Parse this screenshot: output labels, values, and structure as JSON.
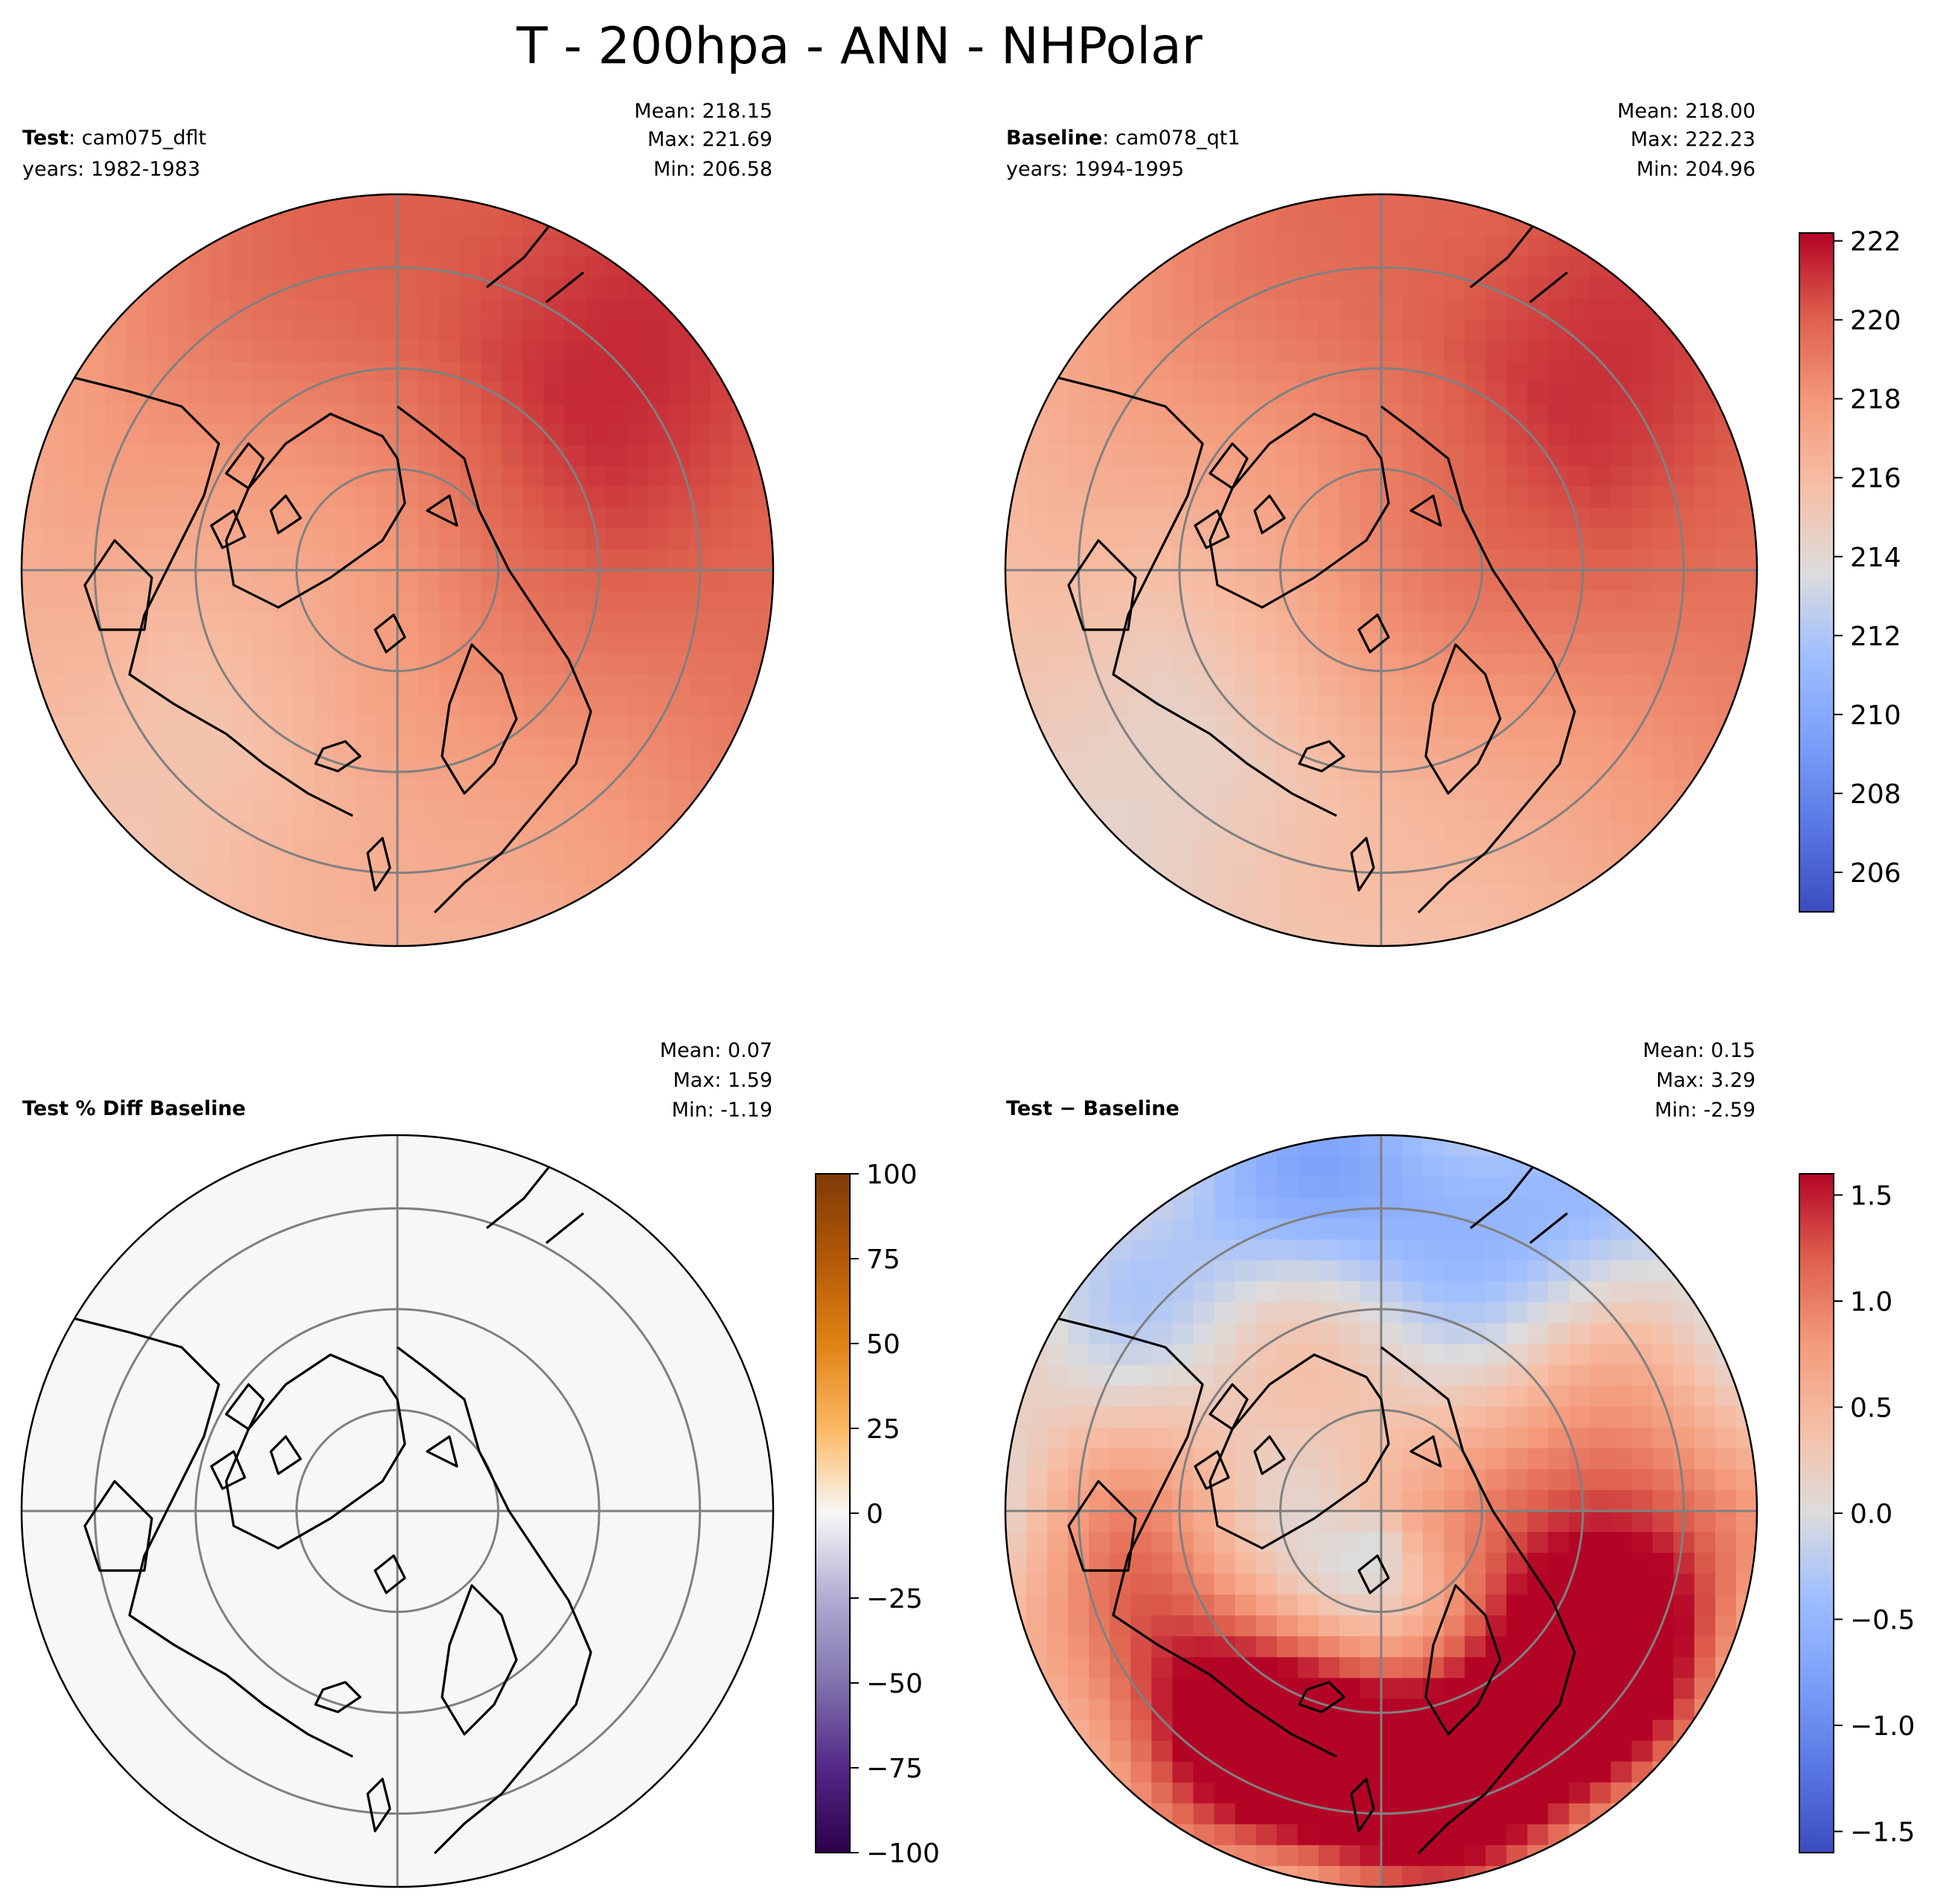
{
  "figure_title": "T - 200hpa - ANN - NHPolar",
  "chart_data": [
    {
      "type": "heatmap",
      "projection": "north-polar-stereographic",
      "panel": "top-left",
      "title_bold": "Test",
      "title_rest": ": cam075_dflt",
      "subtitle": "years: 1982-1983",
      "stats": {
        "mean": "Mean: 218.15",
        "max": "Max: 221.69",
        "min": "Min: 206.58"
      },
      "colormap": "coolwarm",
      "value_range": [
        205,
        222.2
      ],
      "field": {
        "base": 218.4,
        "lobe_amp": 2.6,
        "lobe_lon": 135,
        "pole": 218.0
      }
    },
    {
      "type": "heatmap",
      "projection": "north-polar-stereographic",
      "panel": "top-right",
      "title_bold": "Baseline",
      "title_rest": ": cam078_qt1",
      "subtitle": "years: 1994-1995",
      "stats": {
        "mean": "Mean: 218.00",
        "max": "Max: 222.23",
        "min": "Min: 204.96"
      },
      "colormap": "coolwarm",
      "value_range": [
        205,
        222.2
      ],
      "field": {
        "base": 217.8,
        "lobe_amp": 3.0,
        "lobe_lon": 135,
        "pole": 218.6
      },
      "colorbar": {
        "ticks": [
          "206",
          "208",
          "210",
          "212",
          "214",
          "216",
          "218",
          "220",
          "222"
        ],
        "values": [
          206,
          208,
          210,
          212,
          214,
          216,
          218,
          220,
          222
        ],
        "range": [
          205,
          222.2
        ]
      }
    },
    {
      "type": "heatmap",
      "projection": "north-polar-stereographic",
      "panel": "bottom-left",
      "title_bold": "Test % Diff Baseline",
      "title_rest": "",
      "subtitle": "",
      "stats": {
        "mean": "Mean:  0.07",
        "max": "Max:  1.59",
        "min": "Min: -1.19"
      },
      "colormap": "PuOr_r",
      "value_range": [
        -100,
        100
      ],
      "field": {
        "uniform": 0.07
      },
      "colorbar": {
        "ticks": [
          "−100",
          "−75",
          "−50",
          "−25",
          "0",
          "25",
          "50",
          "75",
          "100"
        ],
        "values": [
          -100,
          -75,
          -50,
          -25,
          0,
          25,
          50,
          75,
          100
        ],
        "range": [
          -100,
          100
        ]
      }
    },
    {
      "type": "heatmap",
      "projection": "north-polar-stereographic",
      "panel": "bottom-right",
      "title_bold": "Test",
      "title_rest": " − Baseline",
      "subtitle": "",
      "stats": {
        "mean": "Mean:  0.15",
        "max": "Max:  3.29",
        "min": "Min: -2.59"
      },
      "colormap": "coolwarm",
      "value_range": [
        -1.6,
        1.6
      ],
      "field": {
        "blobs": [
          {
            "lon": 60,
            "r": 0.65,
            "amp": 1.8,
            "w": 0.35
          },
          {
            "lon": -20,
            "r": 0.7,
            "amp": 1.9,
            "w": 0.3
          },
          {
            "lon": 170,
            "r": 0.85,
            "amp": -0.9,
            "w": 0.35
          },
          {
            "lon": -5,
            "r": 0.2,
            "amp": -0.5,
            "w": 0.35
          }
        ],
        "base": 0.45
      },
      "colorbar": {
        "ticks": [
          "−1.5",
          "−1.0",
          "−0.5",
          "0.0",
          "0.5",
          "1.0",
          "1.5"
        ],
        "values": [
          -1.5,
          -1.0,
          -0.5,
          0.0,
          0.5,
          1.0,
          1.5
        ],
        "range": [
          -1.6,
          1.6
        ]
      }
    }
  ]
}
